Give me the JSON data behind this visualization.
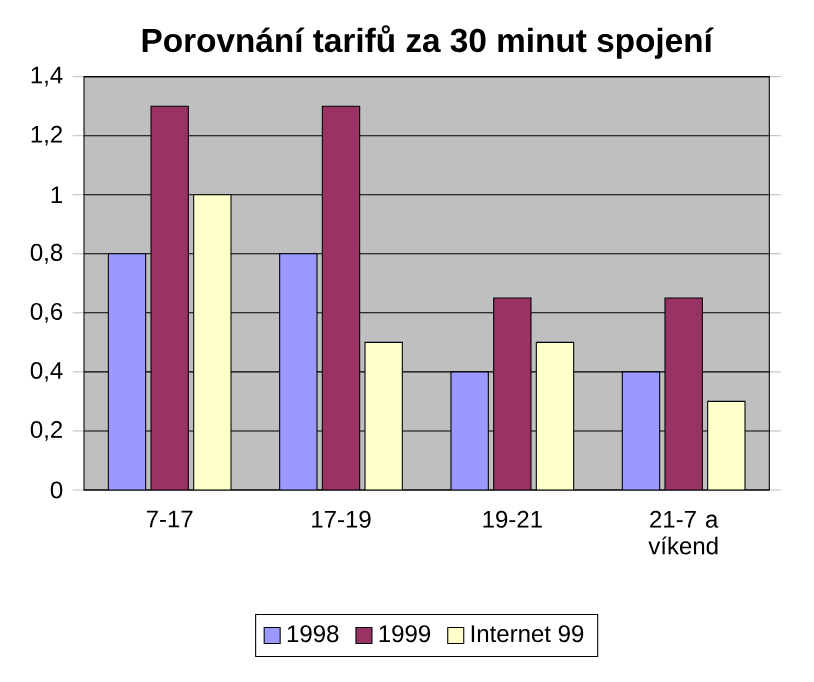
{
  "chart_data": {
    "type": "bar",
    "title": "Porovnání tarifů za 30 minut spojení",
    "categories": [
      "7-17",
      "17-19",
      "19-21",
      "21-7 a víkend"
    ],
    "series": [
      {
        "name": "1998",
        "color": "#9999ff",
        "values": [
          0.8,
          0.8,
          0.4,
          0.4
        ]
      },
      {
        "name": "1999",
        "color": "#993366",
        "values": [
          1.3,
          1.3,
          0.65,
          0.65
        ]
      },
      {
        "name": "Internet 99",
        "color": "#ffffcc",
        "values": [
          1.0,
          0.5,
          0.5,
          0.3
        ]
      }
    ],
    "ylim": [
      0,
      1.4
    ],
    "yticks": [
      0,
      {
        "value": 0.2,
        "label": "0,2"
      },
      {
        "value": 0.4,
        "label": "0,4"
      },
      {
        "value": 0.6,
        "label": "0,6"
      },
      {
        "value": 0.8,
        "label": "0,8"
      },
      1,
      {
        "value": 1.2,
        "label": "1,2"
      },
      {
        "value": 1.4,
        "label": "1,4"
      }
    ],
    "grid": "y",
    "legend": "bottom"
  }
}
